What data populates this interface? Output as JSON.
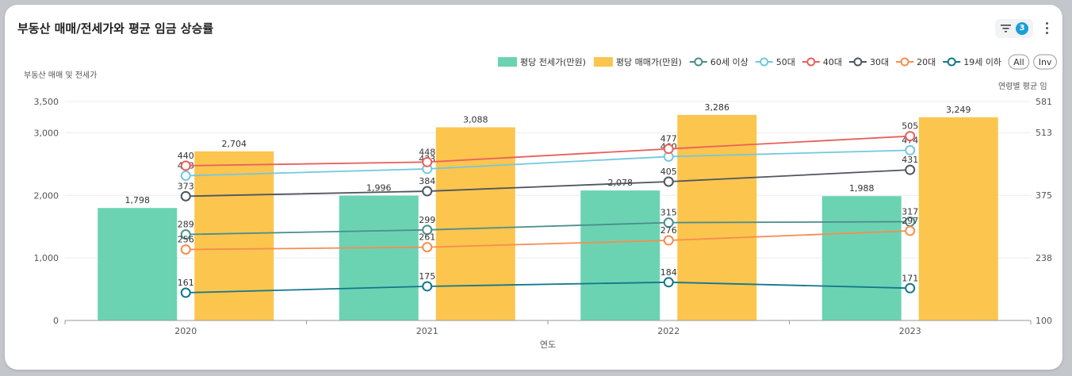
{
  "header": {
    "title": "부동산 매매/전세가와 평균 임금 상승률",
    "filter_count": "3"
  },
  "legend": {
    "all_label": "All",
    "inv_label": "Inv"
  },
  "chart_data": {
    "type": "bar",
    "categories": [
      "2020",
      "2021",
      "2022",
      "2023"
    ],
    "xlabel": "연도",
    "ylabel": "부동산 매매 및 전세가",
    "y2label": "연령별 평균 임",
    "ylim": [
      0,
      3500
    ],
    "y_ticks": [
      "0",
      "1,000",
      "2,000",
      "3,000",
      "3,500"
    ],
    "y2lim": [
      100,
      581
    ],
    "y2_ticks": [
      "100",
      "238",
      "375",
      "513",
      "581"
    ],
    "bars": [
      {
        "name": "평당 전세가(만원)",
        "color": "#6bd3b2",
        "values": [
          1798,
          1996,
          2078,
          1988
        ],
        "labels": [
          "1,798",
          "1,996",
          "2,078",
          "1,988"
        ]
      },
      {
        "name": "평당 매매가(만원)",
        "color": "#fbc54e",
        "values": [
          2704,
          3088,
          3286,
          3249
        ],
        "labels": [
          "2,704",
          "3,088",
          "3,286",
          "3,249"
        ]
      }
    ],
    "lines": [
      {
        "name": "60세 이상",
        "color": "#4a8e8c",
        "values": [
          289,
          299,
          315,
          317
        ]
      },
      {
        "name": "50대",
        "color": "#72c8e0",
        "values": [
          418,
          433,
          460,
          474
        ]
      },
      {
        "name": "40대",
        "color": "#e8605c",
        "values": [
          440,
          448,
          477,
          505
        ]
      },
      {
        "name": "30대",
        "color": "#4f5560",
        "values": [
          373,
          384,
          405,
          431
        ]
      },
      {
        "name": "20대",
        "color": "#f58d50",
        "values": [
          256,
          261,
          276,
          297
        ]
      },
      {
        "name": "19세 이하",
        "color": "#12778c",
        "values": [
          161,
          175,
          184,
          171
        ]
      }
    ],
    "grid": true,
    "legend_position": "top-right"
  }
}
